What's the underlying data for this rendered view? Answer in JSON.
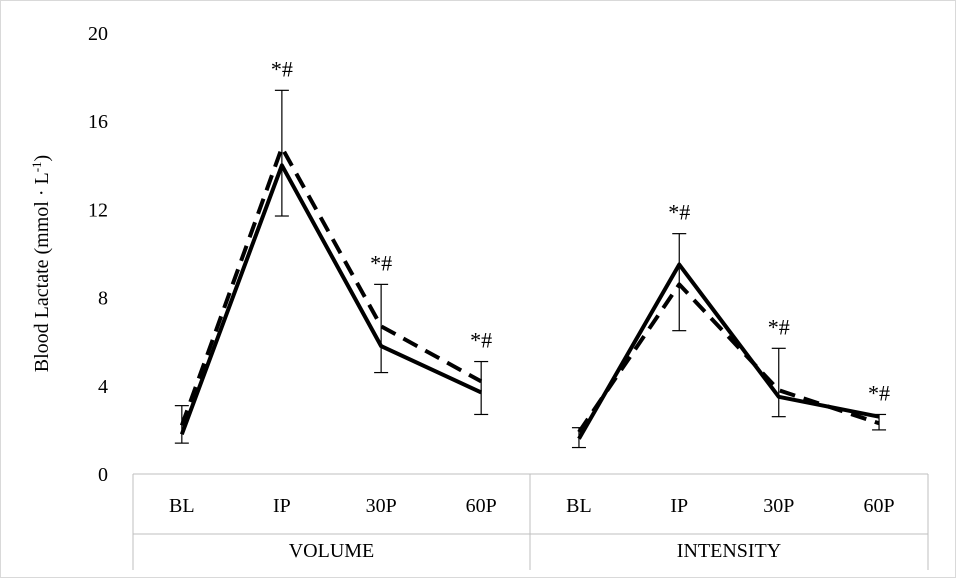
{
  "chart_data": {
    "type": "line",
    "title": "",
    "ylabel": "Blood Lactate (mmol · L",
    "ylabel_superscript": "-1",
    "ylabel_suffix": ")",
    "ylim": [
      0,
      20
    ],
    "yticks": [
      0,
      4,
      8,
      12,
      16,
      20
    ],
    "grid": false,
    "legend": "none",
    "groups": [
      {
        "name": "VOLUME",
        "categories": [
          "BL",
          "IP",
          "30P",
          "60P"
        ],
        "series": [
          {
            "style": "solid",
            "values": [
              1.8,
              14.0,
              5.8,
              3.7
            ],
            "error_low": [
              1.4,
              11.7,
              4.6,
              2.7
            ],
            "error_high": [
              3.1,
              17.4,
              8.6,
              5.1
            ]
          },
          {
            "style": "dashed",
            "values": [
              2.2,
              14.8,
              6.7,
              4.2
            ]
          }
        ],
        "annotations": [
          "",
          "*#",
          "*#",
          "*#"
        ]
      },
      {
        "name": "INTENSITY",
        "categories": [
          "BL",
          "IP",
          "30P",
          "60P"
        ],
        "series": [
          {
            "style": "solid",
            "values": [
              1.6,
              9.5,
              3.5,
              2.6
            ],
            "error_low": [
              1.2,
              6.5,
              2.6,
              2.0
            ],
            "error_high": [
              2.1,
              10.9,
              5.7,
              2.7
            ]
          },
          {
            "style": "dashed",
            "values": [
              1.9,
              8.6,
              3.8,
              2.3
            ]
          }
        ],
        "annotations": [
          "",
          "*#",
          "*#",
          "*#"
        ]
      }
    ]
  }
}
